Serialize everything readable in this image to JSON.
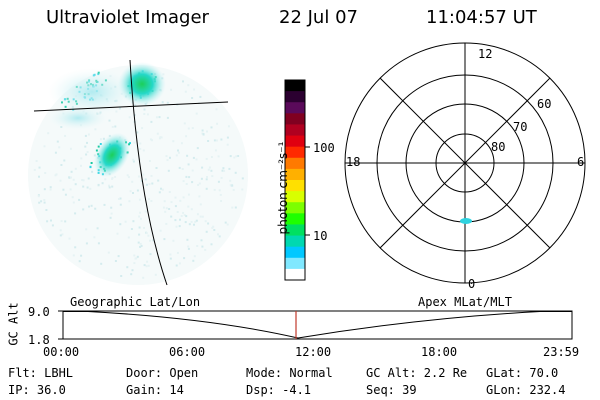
{
  "header": {
    "instrument": "Ultraviolet Imager",
    "date": "22 Jul 07",
    "time": "11:04:57 UT"
  },
  "colorbar": {
    "label": "photon cm⁻²s⁻¹",
    "ticks": [
      "100",
      "10"
    ],
    "colors": [
      "#000000",
      "#2b0030",
      "#5a0a5a",
      "#800020",
      "#b00020",
      "#e00010",
      "#ff2a00",
      "#ff7a00",
      "#ffb000",
      "#ffe000",
      "#d8ff00",
      "#7cff00",
      "#1eff00",
      "#00e060",
      "#00d8b0",
      "#00c8ff",
      "#80e8ff",
      "#ffffff"
    ]
  },
  "geo_panel": {
    "label": "Geographic Lat/Lon"
  },
  "polar_panel": {
    "label": "Apex MLat/MLT",
    "mlt_labels": {
      "top": "12",
      "right": "6",
      "bottom": "0",
      "left": "18"
    },
    "lat_labels": [
      "60",
      "70",
      "80"
    ]
  },
  "altitude_plot": {
    "ylabel": "GC Alt",
    "yticks": [
      "9.0",
      "1.8"
    ],
    "xticks": [
      "00:00",
      "06:00",
      "12:00",
      "18:00",
      "23:59"
    ],
    "marker_time": "11:05",
    "marker_color": "#c0392b"
  },
  "status": {
    "flt": "Flt: LBHL",
    "door": "Door: Open",
    "mode": "Mode: Normal",
    "gc_alt": "GC Alt: 2.2 Re",
    "glat": "GLat:  70.0",
    "ip": "IP: 36.0",
    "gain": "Gain: 14",
    "dsp": "Dsp:    -4.1",
    "seq": "Seq: 39",
    "glon": "GLon: 232.4"
  }
}
